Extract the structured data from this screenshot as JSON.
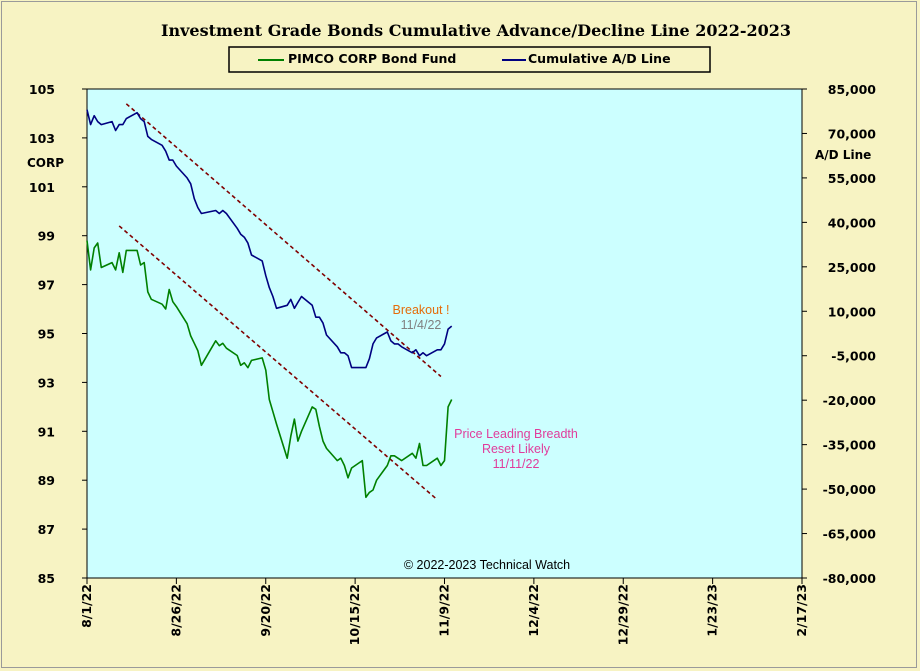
{
  "chart_data": {
    "type": "line",
    "title": "Investment Grade Bonds Cumulative Advance/Decline Line 2022-2023",
    "ylabel_left": "CORP",
    "ylabel_right": "A/D Line",
    "x_tick_labels": [
      "8/1/22",
      "8/26/22",
      "9/20/22",
      "10/15/22",
      "11/9/22",
      "12/4/22",
      "12/29/22",
      "1/23/23",
      "2/17/23"
    ],
    "xlim": [
      "2022-08-01",
      "2023-02-17"
    ],
    "ylim_left": [
      85,
      105
    ],
    "y_ticks_left": [
      "105",
      "103",
      "101",
      "99",
      "97",
      "95",
      "93",
      "91",
      "89",
      "87",
      "85"
    ],
    "ylim_right": [
      -80000,
      85000
    ],
    "y_ticks_right": [
      "85,000",
      "70,000",
      "55,000",
      "40,000",
      "25,000",
      "10,000",
      "-5,000",
      "-20,000",
      "-35,000",
      "-50,000",
      "-65,000",
      "-80,000"
    ],
    "grid": false,
    "legend": "top-center",
    "colors": {
      "price": "#008000",
      "ad": "#000080",
      "background": "#ccffff",
      "trendline": "#800000",
      "breakout": "#e46c0a",
      "breakout_date": "#808080",
      "price_note": "#e03c9b"
    },
    "series": [
      {
        "name": "PIMCO CORP Bond Fund",
        "axis": "left",
        "x": [
          "2022-08-01",
          "2022-08-02",
          "2022-08-03",
          "2022-08-04",
          "2022-08-05",
          "2022-08-08",
          "2022-08-09",
          "2022-08-10",
          "2022-08-11",
          "2022-08-12",
          "2022-08-15",
          "2022-08-16",
          "2022-08-17",
          "2022-08-18",
          "2022-08-19",
          "2022-08-22",
          "2022-08-23",
          "2022-08-24",
          "2022-08-25",
          "2022-08-26",
          "2022-08-29",
          "2022-08-30",
          "2022-08-31",
          "2022-09-01",
          "2022-09-02",
          "2022-09-06",
          "2022-09-07",
          "2022-09-08",
          "2022-09-09",
          "2022-09-12",
          "2022-09-13",
          "2022-09-14",
          "2022-09-15",
          "2022-09-16",
          "2022-09-19",
          "2022-09-20",
          "2022-09-21",
          "2022-09-22",
          "2022-09-23",
          "2022-09-26",
          "2022-09-27",
          "2022-09-28",
          "2022-09-29",
          "2022-09-30",
          "2022-10-03",
          "2022-10-04",
          "2022-10-05",
          "2022-10-06",
          "2022-10-07",
          "2022-10-10",
          "2022-10-11",
          "2022-10-12",
          "2022-10-13",
          "2022-10-14",
          "2022-10-17",
          "2022-10-18",
          "2022-10-19",
          "2022-10-20",
          "2022-10-21",
          "2022-10-24",
          "2022-10-25",
          "2022-10-26",
          "2022-10-27",
          "2022-10-28",
          "2022-10-31",
          "2022-11-01",
          "2022-11-02",
          "2022-11-03",
          "2022-11-04",
          "2022-11-07",
          "2022-11-08",
          "2022-11-09",
          "2022-11-10",
          "2022-11-11"
        ],
        "values": [
          98.8,
          97.6,
          98.5,
          98.7,
          97.7,
          97.9,
          97.6,
          98.3,
          97.5,
          98.4,
          98.4,
          97.8,
          97.9,
          96.7,
          96.4,
          96.2,
          96.0,
          96.8,
          96.3,
          96.1,
          95.4,
          94.9,
          94.6,
          94.3,
          93.7,
          94.7,
          94.5,
          94.6,
          94.4,
          94.1,
          93.7,
          93.8,
          93.6,
          93.9,
          94.0,
          93.5,
          92.3,
          91.8,
          91.3,
          89.9,
          90.8,
          91.5,
          90.6,
          91.0,
          92.0,
          91.9,
          91.2,
          90.6,
          90.3,
          89.8,
          89.9,
          89.6,
          89.1,
          89.5,
          89.8,
          88.3,
          88.5,
          88.6,
          89.0,
          89.6,
          90.0,
          90.0,
          89.9,
          89.8,
          90.1,
          89.9,
          90.5,
          89.6,
          89.6,
          89.9,
          89.6,
          89.8,
          92.0,
          92.3
        ]
      },
      {
        "name": "Cumulative A/D Line",
        "axis": "right",
        "x": [
          "2022-08-01",
          "2022-08-02",
          "2022-08-03",
          "2022-08-04",
          "2022-08-05",
          "2022-08-08",
          "2022-08-09",
          "2022-08-10",
          "2022-08-11",
          "2022-08-12",
          "2022-08-15",
          "2022-08-16",
          "2022-08-17",
          "2022-08-18",
          "2022-08-19",
          "2022-08-22",
          "2022-08-23",
          "2022-08-24",
          "2022-08-25",
          "2022-08-26",
          "2022-08-29",
          "2022-08-30",
          "2022-08-31",
          "2022-09-01",
          "2022-09-02",
          "2022-09-06",
          "2022-09-07",
          "2022-09-08",
          "2022-09-09",
          "2022-09-12",
          "2022-09-13",
          "2022-09-14",
          "2022-09-15",
          "2022-09-16",
          "2022-09-19",
          "2022-09-20",
          "2022-09-21",
          "2022-09-22",
          "2022-09-23",
          "2022-09-26",
          "2022-09-27",
          "2022-09-28",
          "2022-09-29",
          "2022-09-30",
          "2022-10-03",
          "2022-10-04",
          "2022-10-05",
          "2022-10-06",
          "2022-10-07",
          "2022-10-10",
          "2022-10-11",
          "2022-10-12",
          "2022-10-13",
          "2022-10-14",
          "2022-10-17",
          "2022-10-18",
          "2022-10-19",
          "2022-10-20",
          "2022-10-21",
          "2022-10-24",
          "2022-10-25",
          "2022-10-26",
          "2022-10-27",
          "2022-10-28",
          "2022-10-31",
          "2022-11-01",
          "2022-11-02",
          "2022-11-03",
          "2022-11-04",
          "2022-11-07",
          "2022-11-08",
          "2022-11-09",
          "2022-11-10",
          "2022-11-11"
        ],
        "values": [
          78000,
          73000,
          76000,
          74000,
          73000,
          74000,
          71000,
          73000,
          73000,
          75000,
          77000,
          75000,
          74000,
          69000,
          68000,
          66000,
          64000,
          61000,
          61000,
          59000,
          55000,
          53000,
          48000,
          45000,
          43000,
          44000,
          43000,
          44000,
          43000,
          38000,
          36000,
          35000,
          33000,
          29000,
          27000,
          22000,
          18000,
          15000,
          11000,
          12000,
          14000,
          11000,
          13000,
          15000,
          12000,
          8000,
          8000,
          6000,
          2000,
          -2000,
          -4000,
          -4000,
          -5000,
          -9000,
          -9000,
          -9000,
          -6000,
          -1000,
          1000,
          3000,
          0,
          -1000,
          -1000,
          -2000,
          -4000,
          -3000,
          -5000,
          -4000,
          -5000,
          -3000,
          -3000,
          -1000,
          4000,
          5000
        ]
      }
    ],
    "trendlines": [
      {
        "axis": "right",
        "x": [
          "2022-08-12",
          "2022-11-08"
        ],
        "y": [
          80000,
          -12000
        ]
      },
      {
        "axis": "left",
        "x": [
          "2022-08-10",
          "2022-11-07"
        ],
        "y": [
          99.4,
          88.2
        ]
      }
    ],
    "annotations": [
      {
        "text": "Breakout !",
        "role": "breakout"
      },
      {
        "text": "11/4/22",
        "role": "breakout_date"
      },
      {
        "text": "Price Leading Breadth",
        "role": "price_note"
      },
      {
        "text": "Reset Likely",
        "role": "price_note"
      },
      {
        "text": "11/11/22",
        "role": "price_note"
      }
    ],
    "copyright": "© 2022-2023 Technical Watch"
  }
}
